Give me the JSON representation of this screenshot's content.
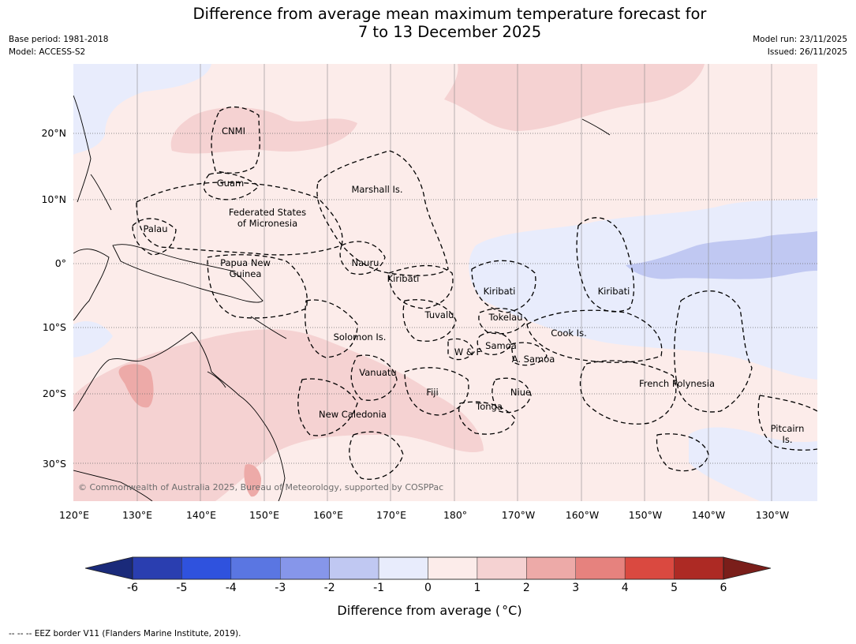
{
  "title": {
    "line1": "Difference from average mean maximum temperature forecast for",
    "line2": "7 to 13 December 2025"
  },
  "meta_left": {
    "base_period": "Base period: 1981-2018",
    "model": "Model: ACCESS-S2"
  },
  "meta_right": {
    "model_run": "Model run: 23/11/2025",
    "issued": "Issued: 26/11/2025"
  },
  "map": {
    "lat_labels": [
      "20°N",
      "10°N",
      "0°",
      "10°S",
      "20°S",
      "30°S"
    ],
    "lon_labels": [
      "120°E",
      "130°E",
      "140°E",
      "150°E",
      "160°E",
      "170°E",
      "180°",
      "170°W",
      "160°W",
      "150°W",
      "140°W",
      "130°W"
    ],
    "regions": {
      "cnmi": "CNMI",
      "guam": "Guam",
      "marshall": "Marshall Is.",
      "fsm1": "Federated States",
      "fsm2": "of Micronesia",
      "palau": "Palau",
      "png1": "Papua New",
      "png2": "Guinea",
      "nauru": "Nauru",
      "kiribati_w": "Kiribati",
      "kiribati_c": "Kiribati",
      "kiribati_e": "Kiribati",
      "tuvalu": "Tuvalu",
      "tokelau": "Tokelau",
      "cook": "Cook Is.",
      "solomon": "Solomon Is.",
      "samoa": "Samoa",
      "wf": "W & F",
      "asamoa": "A. Samoa",
      "vanuatu": "Vanuatu",
      "fiji": "Fiji",
      "niue": "Niue",
      "tonga": "Tonga",
      "frpoly": "French Polynesia",
      "newcal": "New Caledonia",
      "pitcairn1": "Pitcairn",
      "pitcairn2": "Is."
    },
    "copyright": "© Commonwealth of Australia 2025, Bureau of Meteorology, supported by COSPPac"
  },
  "colorbar": {
    "ticks": [
      "-6",
      "-5",
      "-4",
      "-3",
      "-2",
      "-1",
      "0",
      "1",
      "2",
      "3",
      "4",
      "5",
      "6"
    ],
    "colors": {
      "under": "#1a2a7a",
      "c1": "#2a3eb0",
      "c2": "#2f52de",
      "c3": "#5a76e2",
      "c4": "#8696ea",
      "c5": "#c0c8f2",
      "c6": "#e8ecfc",
      "c7": "#fcecea",
      "c8": "#f5d2d2",
      "c9": "#edaaa8",
      "c10": "#e6827e",
      "c11": "#da4940",
      "c12": "#ad2a24",
      "over": "#7a1e1a"
    },
    "title": "Difference from average (",
    "unit": "°C",
    "title_close": ")"
  },
  "footnote": "--  --  -- EEZ border V11 (Flanders Marine Institute, 2019)."
}
